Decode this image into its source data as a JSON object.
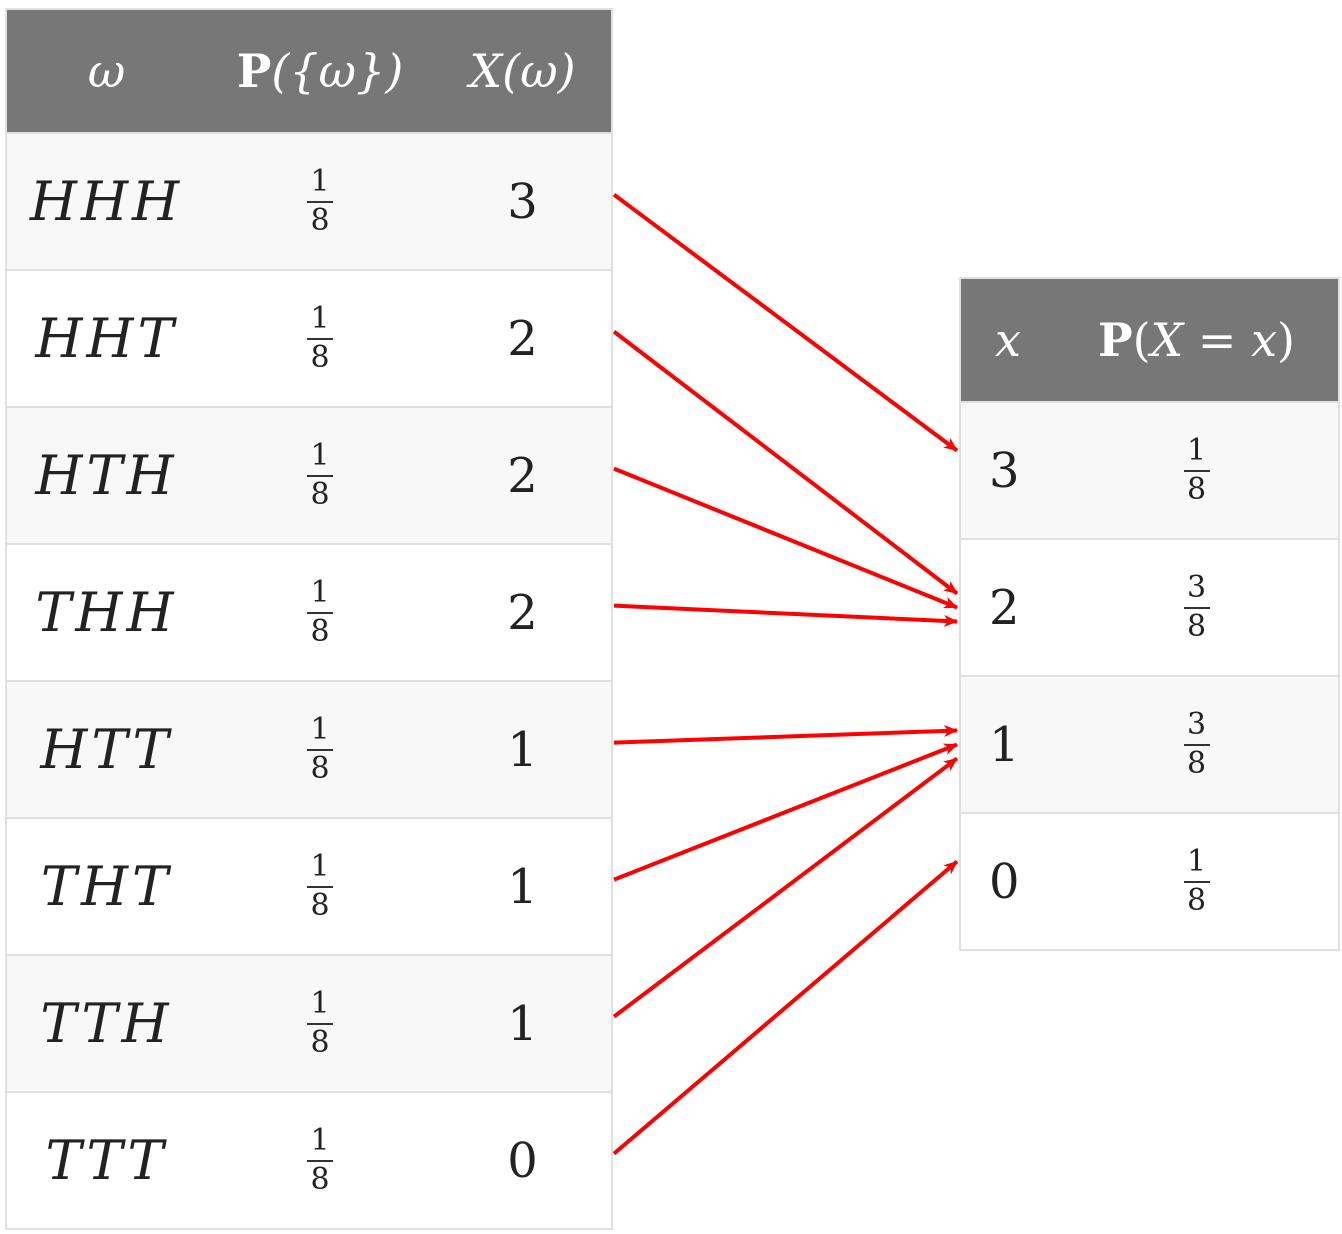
{
  "outcome_table": {
    "headers": {
      "omega": "ω",
      "prob_p": "P",
      "prob_rest": "({ω})",
      "xomega_x": "X",
      "xomega_rest": "(ω)"
    },
    "rows": [
      {
        "outcome": "HHH",
        "num": "1",
        "den": "8",
        "x": "3"
      },
      {
        "outcome": "HHT",
        "num": "1",
        "den": "8",
        "x": "2"
      },
      {
        "outcome": "HTH",
        "num": "1",
        "den": "8",
        "x": "2"
      },
      {
        "outcome": "THH",
        "num": "1",
        "den": "8",
        "x": "2"
      },
      {
        "outcome": "HTT",
        "num": "1",
        "den": "8",
        "x": "1"
      },
      {
        "outcome": "THT",
        "num": "1",
        "den": "8",
        "x": "1"
      },
      {
        "outcome": "TTH",
        "num": "1",
        "den": "8",
        "x": "1"
      },
      {
        "outcome": "TTT",
        "num": "1",
        "den": "8",
        "x": "0"
      }
    ]
  },
  "distribution_table": {
    "headers": {
      "x": "x",
      "prob_p": "P",
      "prob_open": "(",
      "prob_X": "X",
      "prob_eq": " = ",
      "prob_x": "x",
      "prob_close": ")"
    },
    "rows": [
      {
        "x": "3",
        "num": "1",
        "den": "8"
      },
      {
        "x": "2",
        "num": "3",
        "den": "8"
      },
      {
        "x": "1",
        "num": "3",
        "den": "8"
      },
      {
        "x": "0",
        "num": "1",
        "den": "8"
      }
    ]
  },
  "mapping": {
    "arrow_color": "#ff0000",
    "outcome_to_value_row": [
      0,
      1,
      1,
      1,
      2,
      2,
      2,
      3
    ]
  }
}
